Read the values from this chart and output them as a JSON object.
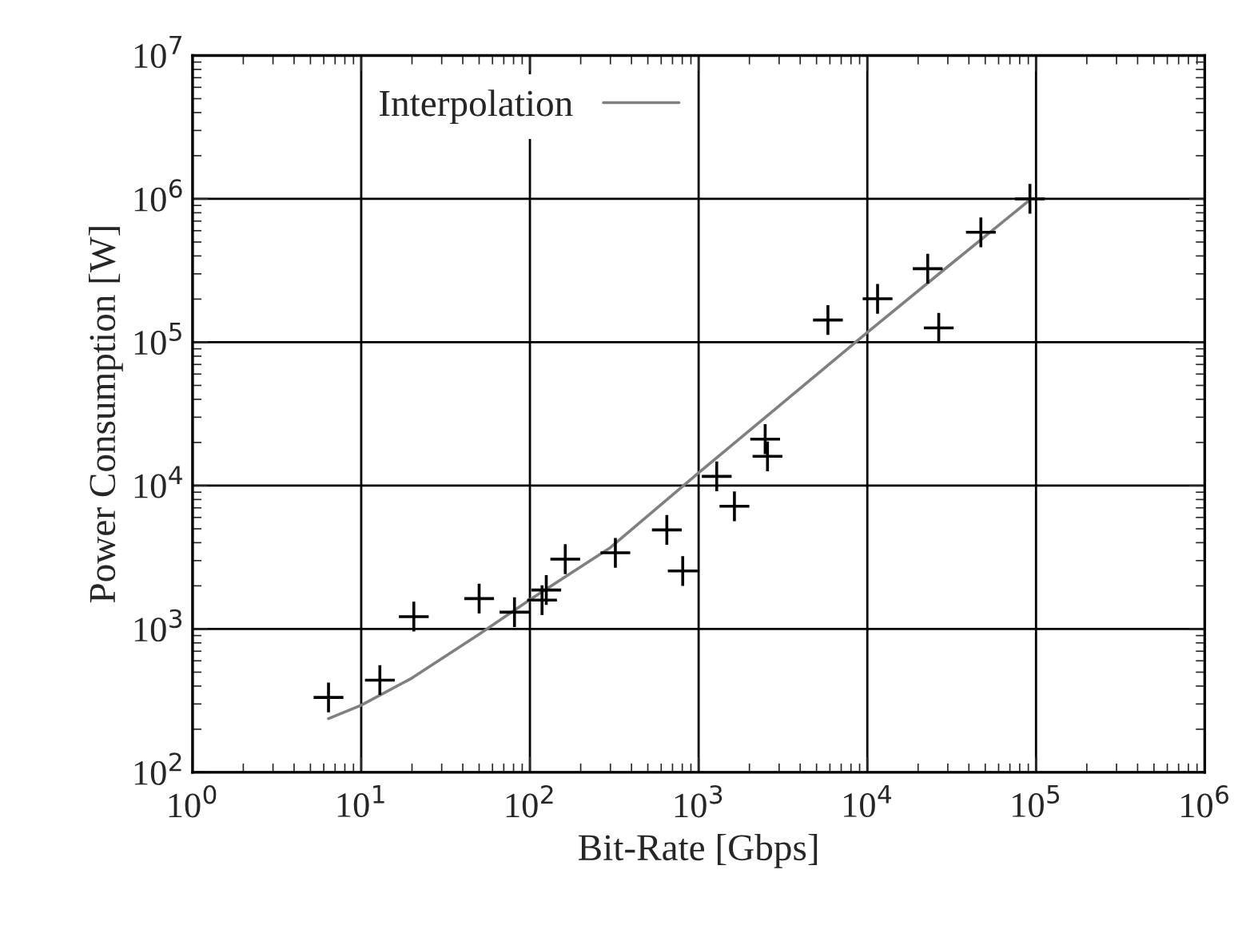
{
  "chart_data": {
    "type": "scatter",
    "xlabel": "Bit-Rate [Gbps]",
    "ylabel": "Power Consumption [W]",
    "log": "xy",
    "grid": true,
    "legend": "top left",
    "marker": "cross",
    "xlim": [
      1,
      1000000
    ],
    "ylim": [
      100,
      10000000
    ],
    "xticks": [
      {
        "value": 1,
        "label": "10$^{0}$"
      },
      {
        "value": 10,
        "label": "10$^{1}$"
      },
      {
        "value": 100,
        "label": "10$^{2}$"
      },
      {
        "value": 1000,
        "label": "10$^{3}$"
      },
      {
        "value": 10000,
        "label": "10$^{4}$"
      },
      {
        "value": 100000,
        "label": "10$^{5}$"
      },
      {
        "value": 1000000,
        "label": "10$^{6}$"
      }
    ],
    "yticks": [
      {
        "value": 100,
        "label": "10$^{2}$"
      },
      {
        "value": 1000,
        "label": "10$^{3}$"
      },
      {
        "value": 10000,
        "label": "10$^{4}$"
      },
      {
        "value": 100000,
        "label": "10$^{5}$"
      },
      {
        "value": 1000000,
        "label": "10$^{6}$"
      },
      {
        "value": 10000000,
        "label": "10$^{7}$"
      }
    ],
    "series": [
      {
        "color": "#000000",
        "x": [
          6.4,
          12.9,
          20.5,
          50,
          81,
          118,
          125,
          162,
          321,
          648,
          805,
          1280,
          1630,
          2480,
          2560,
          5840,
          11500,
          22800,
          26500,
          47100,
          92000
        ],
        "values": [
          333,
          440,
          1220,
          1630,
          1310,
          1590,
          1870,
          3070,
          3400,
          4910,
          2540,
          11600,
          7180,
          21100,
          16000,
          143000,
          201000,
          326000,
          126000,
          585000,
          1000000
        ]
      },
      {
        "type": "line",
        "name": "Interpolation",
        "color": "#808080",
        "marker": "none",
        "x": [
          6.4,
          10,
          20,
          50,
          100,
          300,
          1000,
          3000,
          10000,
          30000,
          89300
        ],
        "values": [
          237,
          294,
          455,
          920,
          1600,
          3700,
          12300,
          36000,
          117000,
          337000,
          957000
        ]
      }
    ]
  }
}
